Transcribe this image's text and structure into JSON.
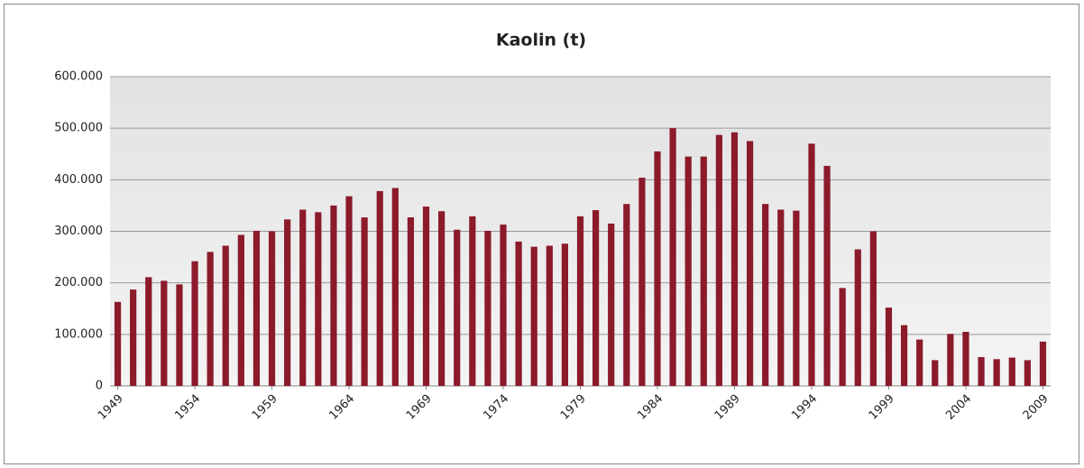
{
  "chart_data": {
    "type": "bar",
    "title": "Kaolin (t)",
    "categories": [
      "1949",
      null,
      null,
      null,
      null,
      "1954",
      null,
      null,
      null,
      null,
      "1959",
      null,
      null,
      null,
      null,
      "1964",
      null,
      null,
      null,
      null,
      "1969",
      null,
      null,
      null,
      null,
      "1974",
      null,
      null,
      null,
      null,
      "1979",
      null,
      null,
      null,
      null,
      "1984",
      null,
      null,
      null,
      null,
      "1989",
      null,
      null,
      null,
      null,
      "1994",
      null,
      null,
      null,
      null,
      "1999",
      null,
      null,
      null,
      null,
      "2004",
      null,
      null,
      null,
      null,
      "2009"
    ],
    "values": [
      163000,
      187000,
      211000,
      204000,
      197000,
      242000,
      260000,
      272000,
      293000,
      301000,
      300000,
      323000,
      342000,
      337000,
      350000,
      368000,
      327000,
      378000,
      384000,
      327000,
      348000,
      339000,
      303000,
      329000,
      301000,
      313000,
      280000,
      270000,
      272000,
      276000,
      329000,
      341000,
      315000,
      353000,
      404000,
      455000,
      500000,
      445000,
      445000,
      487000,
      492000,
      475000,
      353000,
      342000,
      340000,
      470000,
      427000,
      190000,
      265000,
      300000,
      152000,
      118000,
      90000,
      50000,
      101000,
      105000,
      56000,
      52000,
      55000,
      50000,
      86000
    ],
    "color": "#8b1a2b",
    "ylim": [
      0,
      600000
    ],
    "yticks": [
      0,
      {
        "value": 100000,
        "label": "100.000"
      },
      {
        "value": 200000,
        "label": "200.000"
      },
      {
        "value": 300000,
        "label": "300.000"
      },
      {
        "value": 400000,
        "label": "400.000"
      },
      {
        "value": 500000,
        "label": "500.000"
      },
      {
        "value": 600000,
        "label": "600.000"
      }
    ],
    "grid": true
  }
}
